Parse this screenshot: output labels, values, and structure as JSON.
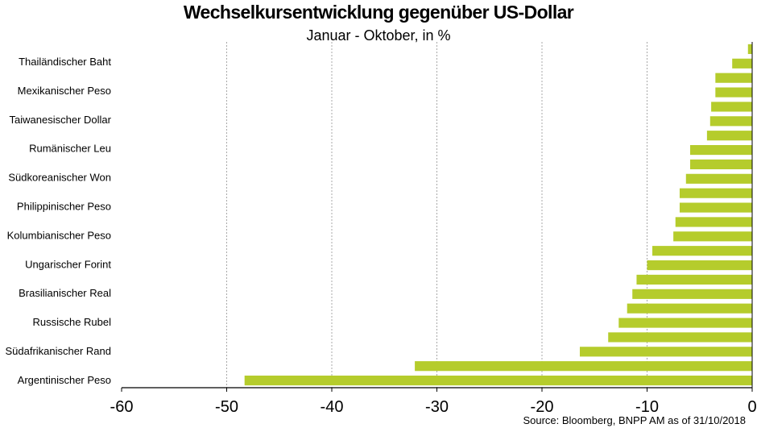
{
  "chart_data": {
    "type": "bar",
    "orientation": "horizontal",
    "title": "Wechselkursentwicklung gegenüber US-Dollar",
    "subtitle": "Januar - Oktober, in %",
    "xlim": [
      -60,
      0
    ],
    "xticks": [
      -60,
      -50,
      -40,
      -30,
      -20,
      -10,
      0
    ],
    "grid": "vertical dashed",
    "source": "Source: Bloomberg, BNPP AM as of 31/10/2018",
    "bar_color": "#b5cc2c",
    "labeled_categories": [
      "Thailändischer Baht",
      "Mexikanischer Peso",
      "Taiwanesischer Dollar",
      "Rumänischer Leu",
      "Südkoreanischer Won",
      "Philippinischer Peso",
      "Kolumbianischer Peso",
      "Ungarischer Forint",
      "Brasilianischer Real",
      "Russische Rubel",
      "Südafrikanischer Rand",
      "Argentinischer Peso"
    ],
    "values": [
      -0.4,
      -1.9,
      -3.5,
      -3.5,
      -3.9,
      -4.0,
      -4.3,
      -5.9,
      -5.9,
      -6.3,
      -6.9,
      -6.9,
      -7.3,
      -7.5,
      -9.5,
      -10.0,
      -11.0,
      -11.4,
      -11.9,
      -12.7,
      -13.7,
      -16.4,
      -32.1,
      -48.3
    ]
  }
}
